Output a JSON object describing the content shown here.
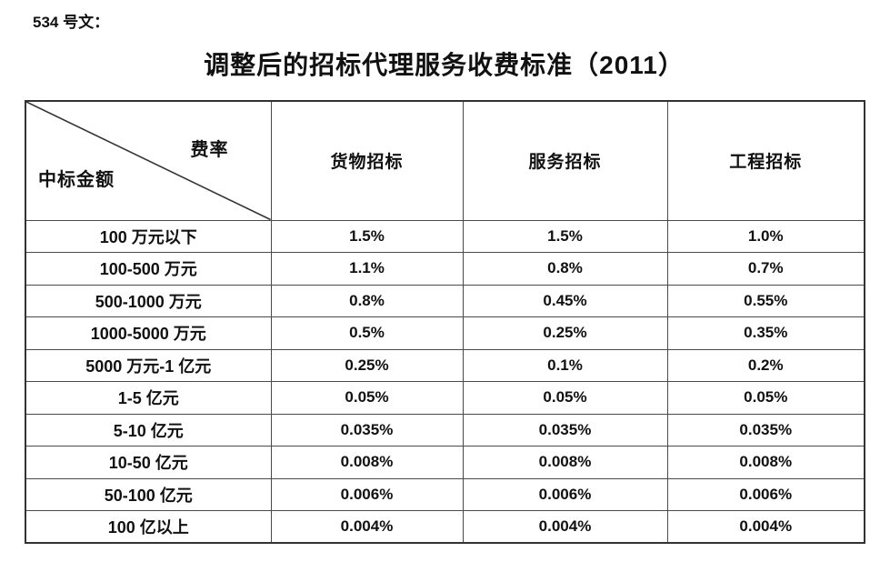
{
  "doc_label": "534 号文：",
  "title": "调整后的招标代理服务收费标准（2011）",
  "table": {
    "corner": {
      "top_right": "费率",
      "bottom_left": "中标金额"
    },
    "columns": [
      "货物招标",
      "服务招标",
      "工程招标"
    ],
    "rows": [
      {
        "amount": "100 万元以下",
        "values": [
          "1.5%",
          "1.5%",
          "1.0%"
        ]
      },
      {
        "amount": "100-500 万元",
        "values": [
          "1.1%",
          "0.8%",
          "0.7%"
        ]
      },
      {
        "amount": "500-1000 万元",
        "values": [
          "0.8%",
          "0.45%",
          "0.55%"
        ]
      },
      {
        "amount": "1000-5000 万元",
        "values": [
          "0.5%",
          "0.25%",
          "0.35%"
        ]
      },
      {
        "amount": "5000 万元-1 亿元",
        "values": [
          "0.25%",
          "0.1%",
          "0.2%"
        ]
      },
      {
        "amount": "1-5 亿元",
        "values": [
          "0.05%",
          "0.05%",
          "0.05%"
        ]
      },
      {
        "amount": "5-10 亿元",
        "values": [
          "0.035%",
          "0.035%",
          "0.035%"
        ]
      },
      {
        "amount": "10-50 亿元",
        "values": [
          "0.008%",
          "0.008%",
          "0.008%"
        ]
      },
      {
        "amount": "50-100 亿元",
        "values": [
          "0.006%",
          "0.006%",
          "0.006%"
        ]
      },
      {
        "amount": "100 亿以上",
        "values": [
          "0.004%",
          "0.004%",
          "0.004%"
        ]
      }
    ]
  },
  "colors": {
    "text": "#111111",
    "border_outer": "#333333",
    "border_inner": "#4a4a4a",
    "diagonal": "#333333"
  }
}
